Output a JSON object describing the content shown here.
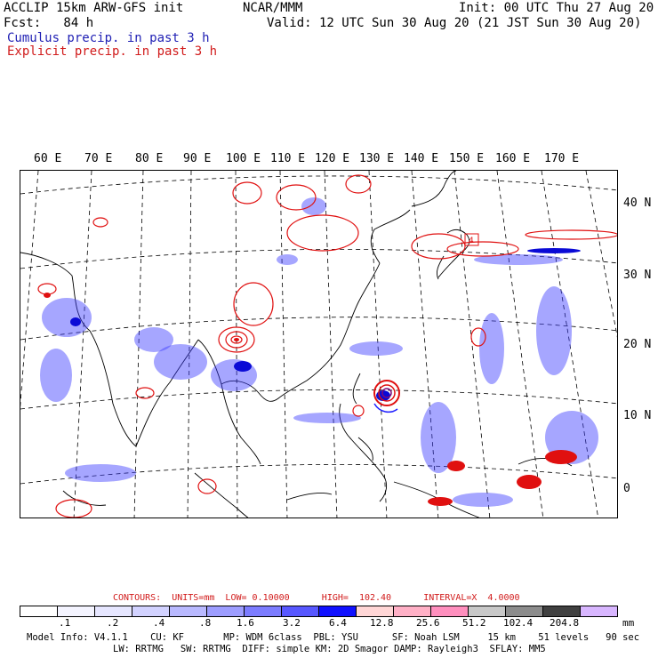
{
  "header": {
    "line1_left": "ACCLIP 15km ARW-GFS init",
    "center": "NCAR/MMM",
    "line1_right": "Init: 00 UTC Thu 27 Aug 20",
    "fcst_label": "Fcst:   84 h",
    "valid": "Valid: 12 UTC Sun 30 Aug 20 (21 JST Sun 30 Aug 20)",
    "cumulus": "Cumulus precip. in past 3 h",
    "explicit": "Explicit precip. in past 3 h"
  },
  "map": {
    "lon_labels": [
      "60 E",
      "70 E",
      "80 E",
      "90 E",
      "100 E",
      "110 E",
      "120 E",
      "130 E",
      "140 E",
      "150 E",
      "160 E",
      "170 E"
    ],
    "lat_labels": [
      "40 N",
      "30 N",
      "20 N",
      "10 N",
      "0"
    ],
    "storm_marker": "4"
  },
  "contours": {
    "text": "CONTOURS:  UNITS=mm  LOW= 0.10000      HIGH=  102.40      INTERVAL=X  4.0000"
  },
  "colorbar": {
    "colors": [
      "#ffffff",
      "#f4f4ff",
      "#e6e6ff",
      "#d2d2ff",
      "#b9b9ff",
      "#9d9dff",
      "#7c7cff",
      "#5757ff",
      "#1010ff",
      "#ffd6d6",
      "#ffb0c6",
      "#ff8fbe",
      "#c8c8c8",
      "#8c8c8c",
      "#404040",
      "#d8b6ff"
    ],
    "labels": [
      ".1",
      ".2",
      ".4",
      ".8",
      "1.6",
      "3.2",
      "6.4",
      "12.8",
      "25.6",
      "51.2",
      "102.4",
      "204.8"
    ],
    "unit": "mm"
  },
  "model_info": {
    "line1": "Model Info: V4.1.1    CU: KF       MP: WDM 6class  PBL: YSU      SF: Noah LSM     15 km    51 levels   90 sec",
    "line2": "LW: RRTMG   SW: RRTMG  DIFF: simple KM: 2D Smagor DAMP: Rayleigh3  SFLAY: MM5"
  },
  "colors": {
    "cumulus": "#1f1fb4",
    "explicit": "#d11b1b"
  }
}
